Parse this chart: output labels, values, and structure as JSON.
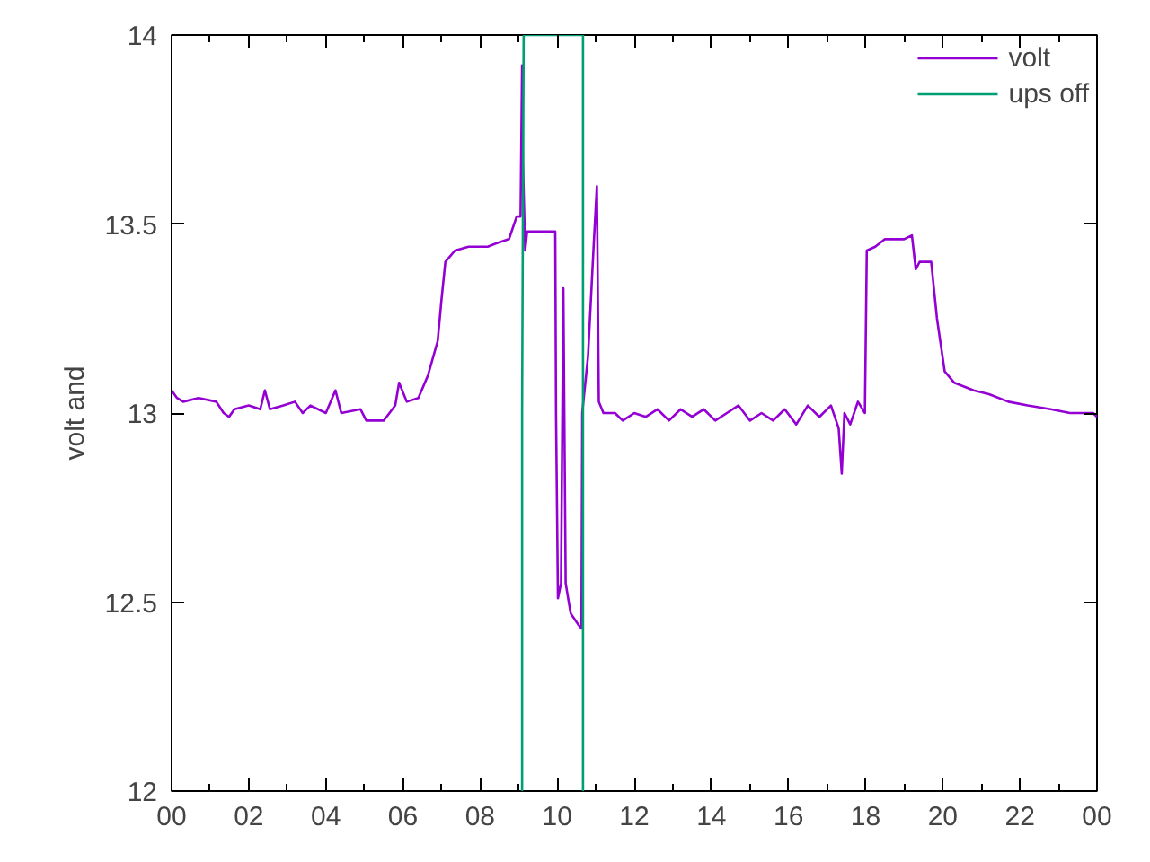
{
  "chart_data": {
    "type": "line",
    "ylabel": "volt and",
    "xlim": [
      0,
      24
    ],
    "ylim": [
      12,
      14
    ],
    "xticks": [
      {
        "value": 0,
        "label": "00"
      },
      {
        "value": 1,
        "label": null
      },
      {
        "value": 2,
        "label": "02"
      },
      {
        "value": 3,
        "label": null
      },
      {
        "value": 4,
        "label": "04"
      },
      {
        "value": 5,
        "label": null
      },
      {
        "value": 6,
        "label": "06"
      },
      {
        "value": 7,
        "label": null
      },
      {
        "value": 8,
        "label": "08"
      },
      {
        "value": 9,
        "label": null
      },
      {
        "value": 10,
        "label": "10"
      },
      {
        "value": 11,
        "label": null
      },
      {
        "value": 12,
        "label": "12"
      },
      {
        "value": 13,
        "label": null
      },
      {
        "value": 14,
        "label": "14"
      },
      {
        "value": 15,
        "label": null
      },
      {
        "value": 16,
        "label": "16"
      },
      {
        "value": 17,
        "label": null
      },
      {
        "value": 18,
        "label": "18"
      },
      {
        "value": 19,
        "label": null
      },
      {
        "value": 20,
        "label": "20"
      },
      {
        "value": 21,
        "label": null
      },
      {
        "value": 22,
        "label": "22"
      },
      {
        "value": 23,
        "label": null
      },
      {
        "value": 24,
        "label": "00"
      }
    ],
    "yticks": [
      12,
      12.5,
      13,
      13.5,
      14
    ],
    "grid": false,
    "legend": "top right",
    "marker": "none",
    "line_style": "solid",
    "series": [
      {
        "name": "volt",
        "color": "#9400d3",
        "x": [
          0.0,
          0.14,
          0.3,
          0.7,
          1.16,
          1.35,
          1.49,
          1.63,
          2.0,
          2.3,
          2.42,
          2.55,
          2.9,
          3.2,
          3.4,
          3.6,
          4.0,
          4.25,
          4.4,
          4.9,
          5.05,
          5.5,
          5.8,
          5.9,
          6.1,
          6.4,
          6.65,
          6.9,
          7.0,
          7.1,
          7.35,
          7.7,
          8.2,
          8.45,
          8.75,
          8.95,
          9.05,
          9.09,
          9.11,
          9.17,
          9.22,
          9.5,
          9.95,
          9.97,
          10.02,
          10.1,
          10.16,
          10.22,
          10.35,
          10.55,
          10.63,
          10.65,
          10.8,
          10.95,
          11.03,
          11.08,
          11.2,
          11.5,
          11.7,
          12.0,
          12.3,
          12.6,
          12.9,
          13.2,
          13.5,
          13.8,
          14.1,
          14.4,
          14.7,
          15.0,
          15.3,
          15.6,
          15.9,
          16.2,
          16.5,
          16.8,
          17.1,
          17.3,
          17.38,
          17.45,
          17.6,
          17.8,
          17.98,
          18.03,
          18.25,
          18.5,
          19.0,
          19.2,
          19.3,
          19.4,
          19.7,
          19.85,
          20.05,
          20.3,
          20.8,
          21.2,
          21.7,
          22.2,
          22.8,
          23.3,
          23.9,
          24.0
        ],
        "values": [
          13.06,
          13.04,
          13.03,
          13.04,
          13.03,
          13.0,
          12.99,
          13.01,
          13.02,
          13.01,
          13.06,
          13.01,
          13.02,
          13.03,
          13.0,
          13.02,
          13.0,
          13.06,
          13.0,
          13.01,
          12.98,
          12.98,
          13.02,
          13.08,
          13.03,
          13.04,
          13.1,
          13.19,
          13.3,
          13.4,
          13.43,
          13.44,
          13.44,
          13.45,
          13.46,
          13.52,
          13.52,
          13.92,
          13.67,
          13.43,
          13.48,
          13.48,
          13.48,
          13.0,
          12.51,
          12.55,
          13.33,
          12.55,
          12.47,
          12.44,
          12.43,
          13.0,
          13.15,
          13.45,
          13.6,
          13.03,
          13.0,
          13.0,
          12.98,
          13.0,
          12.99,
          13.01,
          12.98,
          13.01,
          12.99,
          13.01,
          12.98,
          13.0,
          13.02,
          12.98,
          13.0,
          12.98,
          13.01,
          12.97,
          13.02,
          12.99,
          13.02,
          12.96,
          12.84,
          13.0,
          12.97,
          13.03,
          13.0,
          13.43,
          13.44,
          13.46,
          13.46,
          13.47,
          13.38,
          13.4,
          13.4,
          13.25,
          13.11,
          13.08,
          13.06,
          13.05,
          13.03,
          13.02,
          13.01,
          13.0,
          13.0,
          12.99
        ]
      },
      {
        "name": "ups off",
        "color": "#009e73",
        "x": [
          9.09,
          9.09,
          9.13,
          10.67,
          10.67
        ],
        "values": [
          12,
          13,
          14,
          14,
          12
        ]
      }
    ]
  }
}
